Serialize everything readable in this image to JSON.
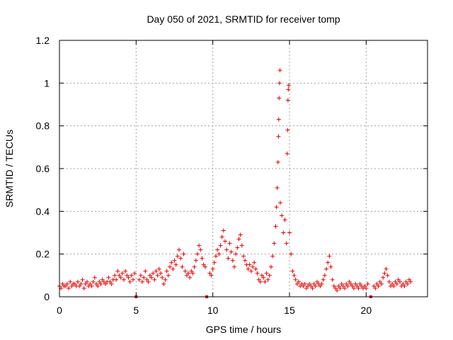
{
  "chart_data": {
    "type": "scatter",
    "title": "Day 050 of 2021, SRMTID for receiver tomp",
    "xlabel": "GPS time / hours",
    "ylabel": "SRMTID / TECUs",
    "xlim": [
      0,
      24
    ],
    "ylim": [
      0,
      1.2
    ],
    "x_ticks": [
      0,
      5,
      10,
      15,
      20
    ],
    "x_tick_labels": [
      "0",
      "5",
      "10",
      "15",
      "20"
    ],
    "y_ticks": [
      0,
      0.2,
      0.4,
      0.6,
      0.8,
      1.0,
      1.2
    ],
    "y_tick_labels": [
      "0",
      "0.2",
      "0.4",
      "0.6",
      "0.8",
      "1",
      "1.2"
    ],
    "grid": true,
    "marker": "+",
    "series_color": "#e00000",
    "data_gaps_hours": [
      5.0,
      9.6,
      20.3
    ],
    "series": [
      {
        "name": "SRMTID",
        "points": [
          [
            0.0,
            0.05
          ],
          [
            0.1,
            0.04
          ],
          [
            0.2,
            0.06
          ],
          [
            0.3,
            0.05
          ],
          [
            0.4,
            0.05
          ],
          [
            0.5,
            0.06
          ],
          [
            0.6,
            0.04
          ],
          [
            0.7,
            0.07
          ],
          [
            0.8,
            0.05
          ],
          [
            0.9,
            0.06
          ],
          [
            1.0,
            0.06
          ],
          [
            1.1,
            0.05
          ],
          [
            1.2,
            0.07
          ],
          [
            1.3,
            0.05
          ],
          [
            1.4,
            0.06
          ],
          [
            1.5,
            0.08
          ],
          [
            1.6,
            0.04
          ],
          [
            1.7,
            0.06
          ],
          [
            1.8,
            0.07
          ],
          [
            1.9,
            0.05
          ],
          [
            2.0,
            0.06
          ],
          [
            2.1,
            0.05
          ],
          [
            2.2,
            0.07
          ],
          [
            2.3,
            0.09
          ],
          [
            2.4,
            0.06
          ],
          [
            2.5,
            0.05
          ],
          [
            2.6,
            0.07
          ],
          [
            2.7,
            0.06
          ],
          [
            2.8,
            0.08
          ],
          [
            2.9,
            0.07
          ],
          [
            3.0,
            0.06
          ],
          [
            3.1,
            0.07
          ],
          [
            3.2,
            0.09
          ],
          [
            3.3,
            0.07
          ],
          [
            3.4,
            0.06
          ],
          [
            3.5,
            0.08
          ],
          [
            3.6,
            0.1
          ],
          [
            3.7,
            0.08
          ],
          [
            3.8,
            0.12
          ],
          [
            3.9,
            0.1
          ],
          [
            4.0,
            0.09
          ],
          [
            4.1,
            0.11
          ],
          [
            4.2,
            0.08
          ],
          [
            4.3,
            0.12
          ],
          [
            4.4,
            0.1
          ],
          [
            4.5,
            0.09
          ],
          [
            4.6,
            0.07
          ],
          [
            4.7,
            0.1
          ],
          [
            4.8,
            0.08
          ],
          [
            4.9,
            0.11
          ],
          [
            5.2,
            0.08
          ],
          [
            5.3,
            0.1
          ],
          [
            5.4,
            0.07
          ],
          [
            5.5,
            0.09
          ],
          [
            5.6,
            0.12
          ],
          [
            5.7,
            0.08
          ],
          [
            5.8,
            0.07
          ],
          [
            5.9,
            0.1
          ],
          [
            6.0,
            0.09
          ],
          [
            6.1,
            0.11
          ],
          [
            6.2,
            0.08
          ],
          [
            6.3,
            0.12
          ],
          [
            6.4,
            0.1
          ],
          [
            6.5,
            0.13
          ],
          [
            6.6,
            0.11
          ],
          [
            6.7,
            0.09
          ],
          [
            6.8,
            0.06
          ],
          [
            6.9,
            0.08
          ],
          [
            7.0,
            0.12
          ],
          [
            7.1,
            0.1
          ],
          [
            7.2,
            0.14
          ],
          [
            7.3,
            0.16
          ],
          [
            7.4,
            0.13
          ],
          [
            7.5,
            0.17
          ],
          [
            7.6,
            0.15
          ],
          [
            7.7,
            0.19
          ],
          [
            7.8,
            0.22
          ],
          [
            7.9,
            0.18
          ],
          [
            8.0,
            0.14
          ],
          [
            8.1,
            0.2
          ],
          [
            8.2,
            0.12
          ],
          [
            8.3,
            0.1
          ],
          [
            8.4,
            0.11
          ],
          [
            8.5,
            0.09
          ],
          [
            8.6,
            0.12
          ],
          [
            8.7,
            0.11
          ],
          [
            8.8,
            0.14
          ],
          [
            8.9,
            0.17
          ],
          [
            9.0,
            0.2
          ],
          [
            9.1,
            0.24
          ],
          [
            9.2,
            0.22
          ],
          [
            9.3,
            0.18
          ],
          [
            9.4,
            0.15
          ],
          [
            9.5,
            0.14
          ],
          [
            9.8,
            0.11
          ],
          [
            9.9,
            0.1
          ],
          [
            10.0,
            0.13
          ],
          [
            10.1,
            0.16
          ],
          [
            10.2,
            0.19
          ],
          [
            10.3,
            0.22
          ],
          [
            10.4,
            0.2
          ],
          [
            10.5,
            0.24
          ],
          [
            10.6,
            0.28
          ],
          [
            10.7,
            0.31
          ],
          [
            10.8,
            0.26
          ],
          [
            10.9,
            0.22
          ],
          [
            11.0,
            0.18
          ],
          [
            11.1,
            0.25
          ],
          [
            11.2,
            0.21
          ],
          [
            11.3,
            0.17
          ],
          [
            11.4,
            0.14
          ],
          [
            11.5,
            0.2
          ],
          [
            11.6,
            0.23
          ],
          [
            11.7,
            0.27
          ],
          [
            11.8,
            0.29
          ],
          [
            11.9,
            0.24
          ],
          [
            12.0,
            0.19
          ],
          [
            12.1,
            0.17
          ],
          [
            12.2,
            0.15
          ],
          [
            12.3,
            0.13
          ],
          [
            12.4,
            0.15
          ],
          [
            12.5,
            0.12
          ],
          [
            12.6,
            0.14
          ],
          [
            12.7,
            0.16
          ],
          [
            12.8,
            0.13
          ],
          [
            12.9,
            0.11
          ],
          [
            13.0,
            0.08
          ],
          [
            13.1,
            0.07
          ],
          [
            13.2,
            0.1
          ],
          [
            13.3,
            0.09
          ],
          [
            13.4,
            0.07
          ],
          [
            13.5,
            0.11
          ],
          [
            13.6,
            0.08
          ],
          [
            13.7,
            0.1
          ],
          [
            13.8,
            0.14
          ],
          [
            13.9,
            0.19
          ],
          [
            14.0,
            0.25
          ],
          [
            14.1,
            0.33
          ],
          [
            14.15,
            0.42
          ],
          [
            14.2,
            0.51
          ],
          [
            14.25,
            0.63
          ],
          [
            14.28,
            0.75
          ],
          [
            14.3,
            0.83
          ],
          [
            14.32,
            0.93
          ],
          [
            14.35,
            1.0
          ],
          [
            14.38,
            1.06
          ],
          [
            14.4,
            0.44
          ],
          [
            14.5,
            0.38
          ],
          [
            14.6,
            0.3
          ],
          [
            14.7,
            0.36
          ],
          [
            14.8,
            0.25
          ],
          [
            14.85,
            0.67
          ],
          [
            14.88,
            0.78
          ],
          [
            14.9,
            0.92
          ],
          [
            14.92,
            0.97
          ],
          [
            14.95,
            0.99
          ],
          [
            15.0,
            0.3
          ],
          [
            15.1,
            0.2
          ],
          [
            15.2,
            0.12
          ],
          [
            15.3,
            0.1
          ],
          [
            15.4,
            0.08
          ],
          [
            15.5,
            0.06
          ],
          [
            15.6,
            0.07
          ],
          [
            15.7,
            0.05
          ],
          [
            15.8,
            0.06
          ],
          [
            15.9,
            0.05
          ],
          [
            16.0,
            0.06
          ],
          [
            16.1,
            0.04
          ],
          [
            16.2,
            0.05
          ],
          [
            16.3,
            0.06
          ],
          [
            16.4,
            0.05
          ],
          [
            16.5,
            0.04
          ],
          [
            16.6,
            0.06
          ],
          [
            16.7,
            0.05
          ],
          [
            16.8,
            0.07
          ],
          [
            16.9,
            0.06
          ],
          [
            17.0,
            0.05
          ],
          [
            17.1,
            0.06
          ],
          [
            17.2,
            0.08
          ],
          [
            17.3,
            0.1
          ],
          [
            17.4,
            0.13
          ],
          [
            17.5,
            0.16
          ],
          [
            17.6,
            0.19
          ],
          [
            17.7,
            0.14
          ],
          [
            17.8,
            0.08
          ],
          [
            17.9,
            0.05
          ],
          [
            18.0,
            0.04
          ],
          [
            18.1,
            0.03
          ],
          [
            18.2,
            0.05
          ],
          [
            18.3,
            0.04
          ],
          [
            18.4,
            0.06
          ],
          [
            18.5,
            0.05
          ],
          [
            18.6,
            0.04
          ],
          [
            18.7,
            0.06
          ],
          [
            18.8,
            0.05
          ],
          [
            18.9,
            0.07
          ],
          [
            19.0,
            0.06
          ],
          [
            19.1,
            0.05
          ],
          [
            19.2,
            0.04
          ],
          [
            19.3,
            0.06
          ],
          [
            19.4,
            0.05
          ],
          [
            19.5,
            0.04
          ],
          [
            19.6,
            0.06
          ],
          [
            19.7,
            0.05
          ],
          [
            19.8,
            0.04
          ],
          [
            19.9,
            0.05
          ],
          [
            20.0,
            0.04
          ],
          [
            20.1,
            0.06
          ],
          [
            20.5,
            0.05
          ],
          [
            20.6,
            0.04
          ],
          [
            20.7,
            0.06
          ],
          [
            20.8,
            0.05
          ],
          [
            20.9,
            0.07
          ],
          [
            21.0,
            0.06
          ],
          [
            21.1,
            0.09
          ],
          [
            21.2,
            0.11
          ],
          [
            21.3,
            0.13
          ],
          [
            21.4,
            0.1
          ],
          [
            21.5,
            0.07
          ],
          [
            21.6,
            0.05
          ],
          [
            21.7,
            0.06
          ],
          [
            21.8,
            0.05
          ],
          [
            21.9,
            0.07
          ],
          [
            22.0,
            0.06
          ],
          [
            22.1,
            0.08
          ],
          [
            22.2,
            0.07
          ],
          [
            22.3,
            0.05
          ],
          [
            22.4,
            0.06
          ],
          [
            22.5,
            0.05
          ],
          [
            22.6,
            0.07
          ],
          [
            22.7,
            0.06
          ],
          [
            22.8,
            0.08
          ],
          [
            22.9,
            0.07
          ]
        ]
      }
    ]
  }
}
